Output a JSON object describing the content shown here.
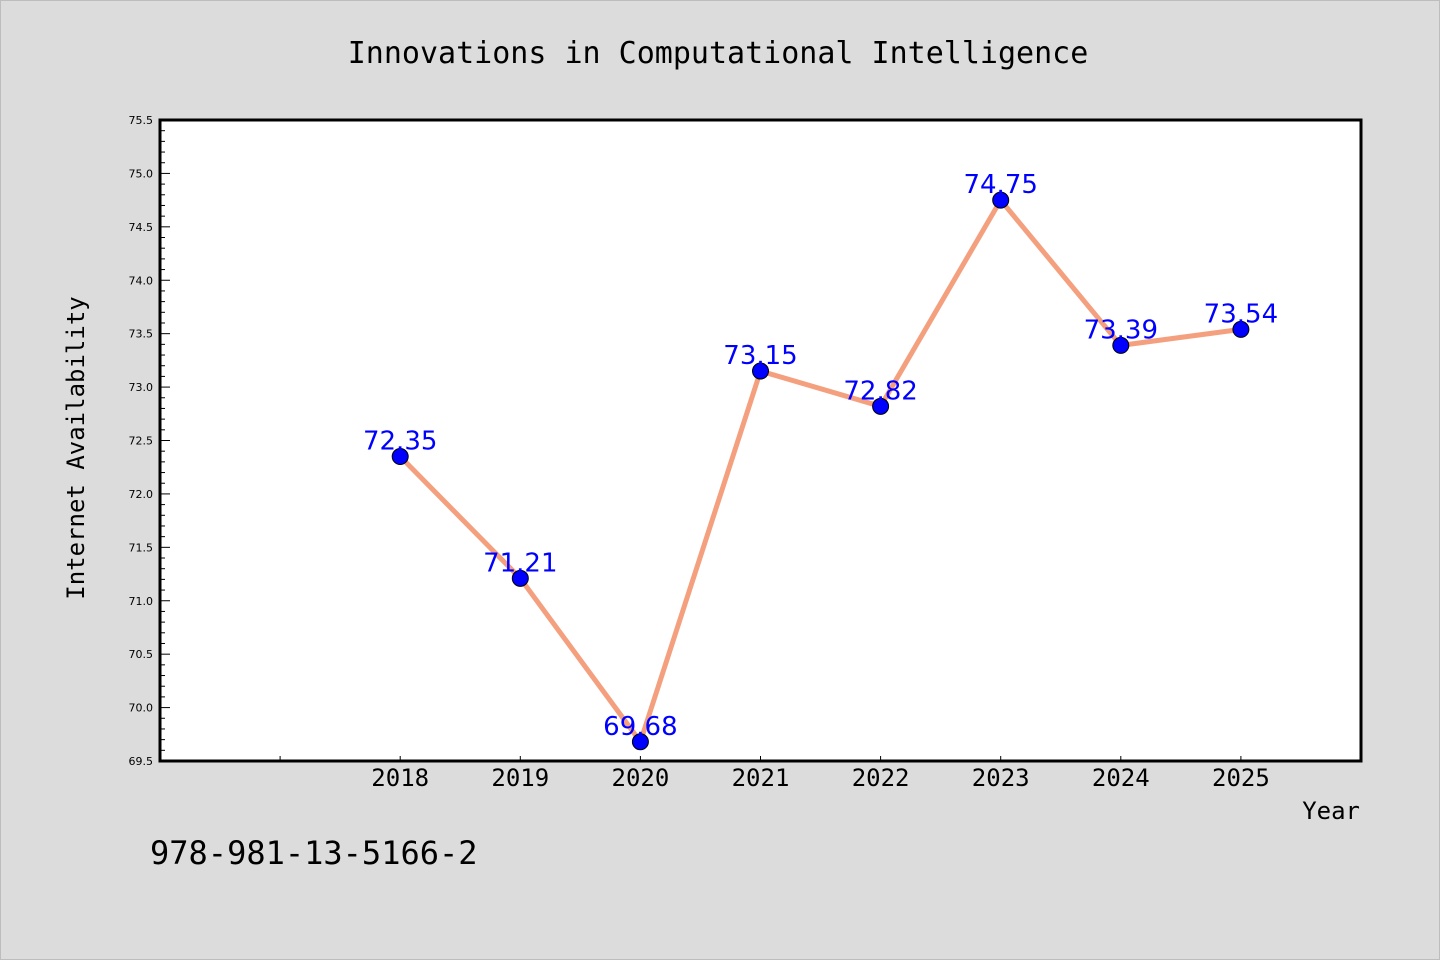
{
  "chart_data": {
    "type": "line",
    "title": "Innovations in Computational Intelligence",
    "xlabel": "Year",
    "ylabel": "Internet Availability",
    "categories": [
      "2018",
      "2019",
      "2020",
      "2021",
      "2022",
      "2023",
      "2024",
      "2025"
    ],
    "x_slots": 10,
    "values": [
      72.35,
      71.21,
      69.68,
      73.15,
      72.82,
      74.75,
      73.39,
      73.54
    ],
    "data_labels": [
      "72.35",
      "71.21",
      "69.68",
      "73.15",
      "72.82",
      "74.75",
      "73.39",
      "73.54"
    ],
    "ylim": [
      69.5,
      75.5
    ],
    "yticks": [
      "69.5",
      "70.0",
      "70.5",
      "71.0",
      "71.5",
      "72.0",
      "72.5",
      "73.0",
      "73.5",
      "74.0",
      "74.5",
      "75.0",
      "75.5"
    ],
    "grid": false,
    "legend": "none",
    "colors": {
      "line": "#f4a07e",
      "marker": "#0000ff",
      "label": "#0000ff",
      "plot_bg": "#ffffff",
      "page_bg": "#dcdcdc"
    }
  },
  "footer_text": "978-981-13-5166-2"
}
